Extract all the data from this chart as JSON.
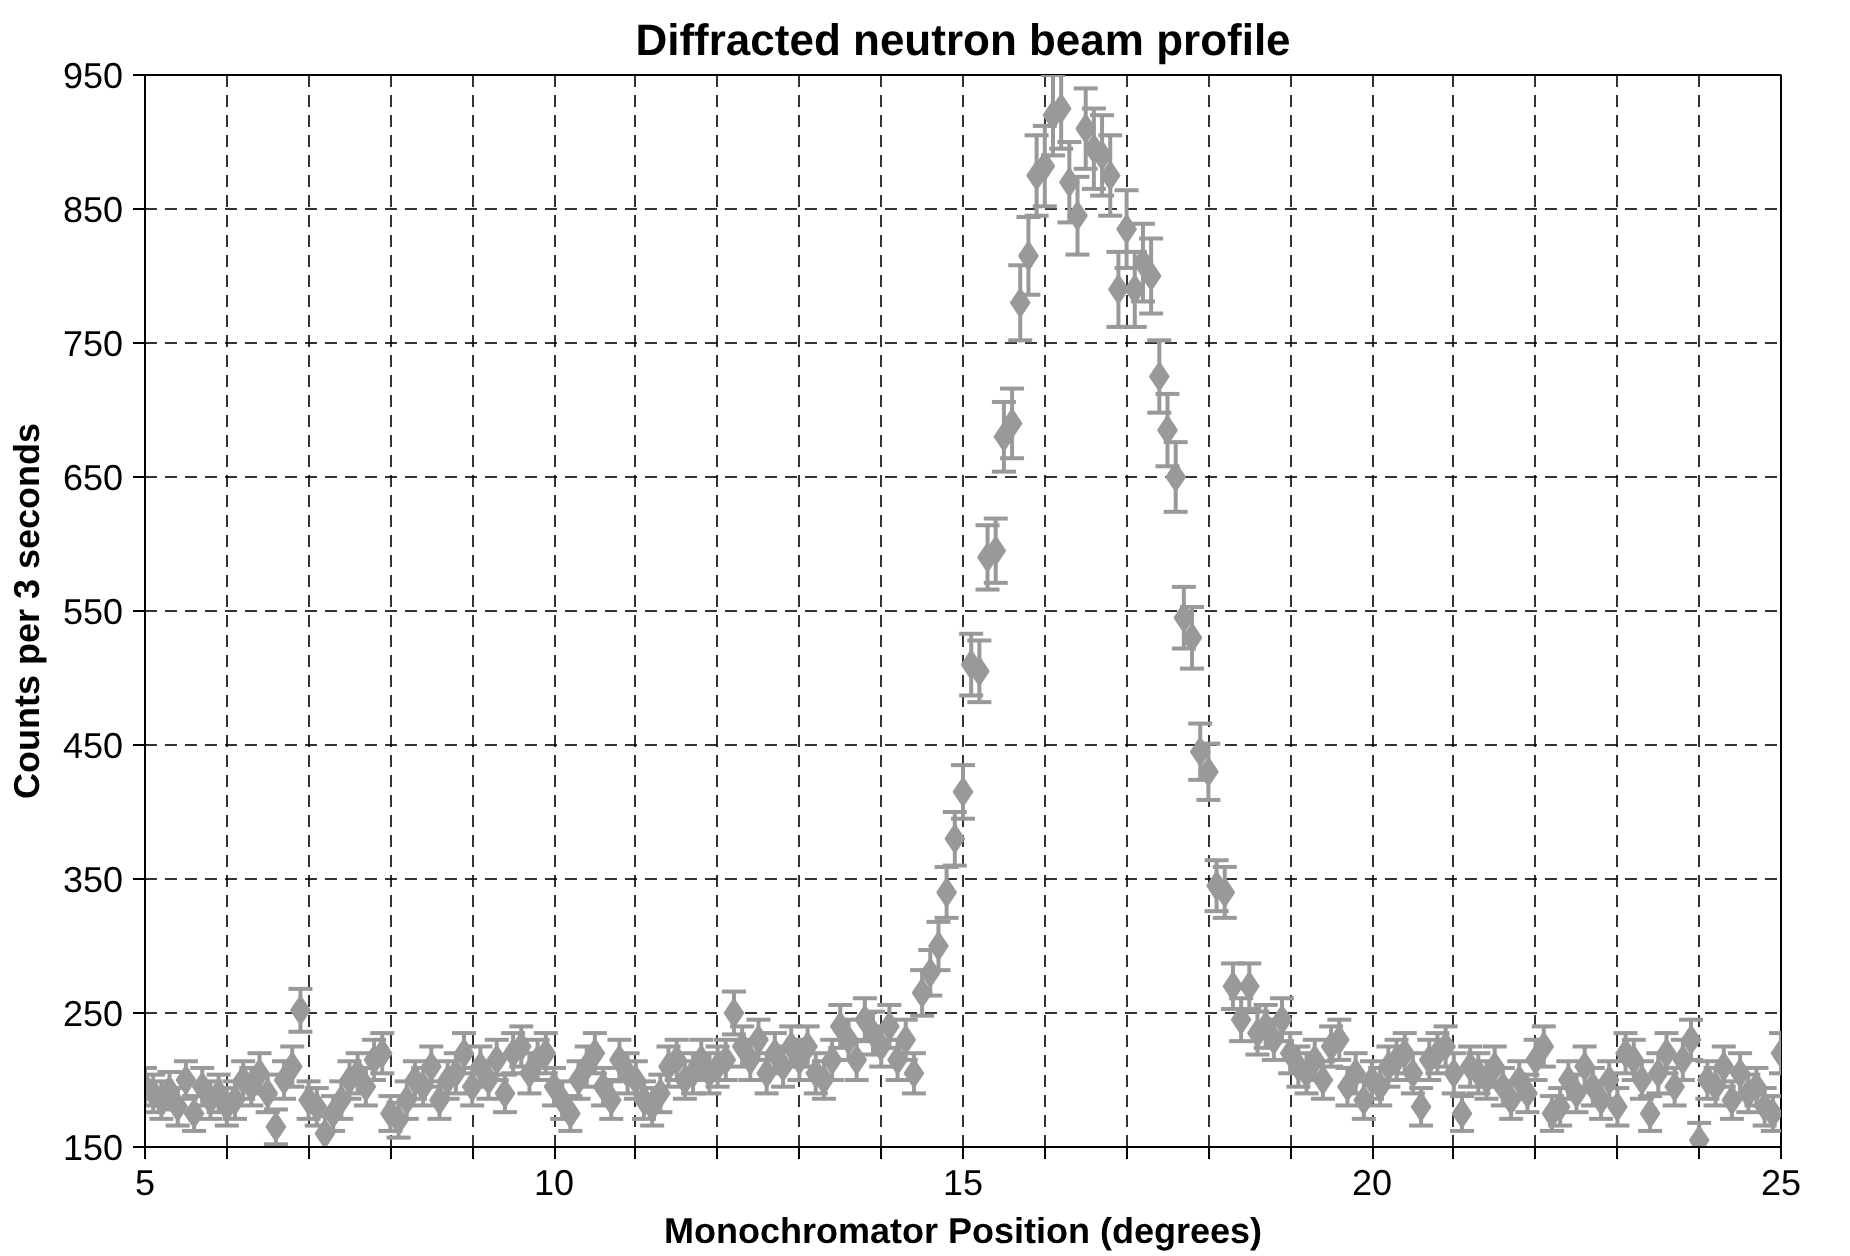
{
  "chart_data": {
    "type": "scatter",
    "title": "Diffracted neutron beam profile",
    "xlabel": "Monochromator Position (degrees)",
    "ylabel": "Counts per 3 seconds",
    "x": [
      5.0,
      5.1,
      5.2,
      5.3,
      5.4,
      5.5,
      5.6,
      5.7,
      5.8,
      5.9,
      6.0,
      6.1,
      6.2,
      6.3,
      6.4,
      6.5,
      6.6,
      6.7,
      6.8,
      6.9,
      7.0,
      7.1,
      7.2,
      7.3,
      7.4,
      7.5,
      7.6,
      7.7,
      7.8,
      7.9,
      8.0,
      8.1,
      8.2,
      8.3,
      8.4,
      8.5,
      8.6,
      8.7,
      8.8,
      8.9,
      9.0,
      9.1,
      9.2,
      9.3,
      9.4,
      9.5,
      9.6,
      9.7,
      9.8,
      9.9,
      10.0,
      10.1,
      10.2,
      10.3,
      10.4,
      10.5,
      10.6,
      10.7,
      10.8,
      10.9,
      11.0,
      11.1,
      11.2,
      11.3,
      11.4,
      11.5,
      11.6,
      11.7,
      11.8,
      11.9,
      12.0,
      12.1,
      12.2,
      12.3,
      12.4,
      12.5,
      12.6,
      12.7,
      12.8,
      12.9,
      13.0,
      13.1,
      13.2,
      13.3,
      13.4,
      13.5,
      13.6,
      13.7,
      13.8,
      13.9,
      14.0,
      14.1,
      14.2,
      14.3,
      14.4,
      14.5,
      14.6,
      14.7,
      14.8,
      14.9,
      15.0,
      15.1,
      15.2,
      15.3,
      15.4,
      15.5,
      15.6,
      15.7,
      15.8,
      15.9,
      16.0,
      16.1,
      16.2,
      16.3,
      16.4,
      16.5,
      16.6,
      16.7,
      16.8,
      16.9,
      17.0,
      17.1,
      17.2,
      17.3,
      17.4,
      17.5,
      17.6,
      17.7,
      17.8,
      17.9,
      18.0,
      18.1,
      18.2,
      18.3,
      18.4,
      18.5,
      18.6,
      18.7,
      18.8,
      18.9,
      19.0,
      19.1,
      19.2,
      19.3,
      19.4,
      19.5,
      19.6,
      19.7,
      19.8,
      19.9,
      20.0,
      20.1,
      20.2,
      20.3,
      20.4,
      20.5,
      20.6,
      20.7,
      20.8,
      20.9,
      21.0,
      21.1,
      21.2,
      21.3,
      21.4,
      21.5,
      21.6,
      21.7,
      21.8,
      21.9,
      22.0,
      22.1,
      22.2,
      22.3,
      22.4,
      22.5,
      22.6,
      22.7,
      22.8,
      22.9,
      23.0,
      23.1,
      23.2,
      23.3,
      23.4,
      23.5,
      23.6,
      23.7,
      23.8,
      23.9,
      24.0,
      24.1,
      24.2,
      24.3,
      24.4,
      24.5,
      24.6,
      24.7,
      24.8,
      24.9,
      25.0
    ],
    "series": [
      {
        "color": "#999999",
        "values": [
          195,
          190,
          185,
          192,
          180,
          200,
          175,
          195,
          185,
          190,
          180,
          185,
          200,
          195,
          205,
          190,
          165,
          200,
          210,
          252,
          185,
          180,
          160,
          175,
          185,
          200,
          205,
          195,
          215,
          220,
          175,
          170,
          185,
          200,
          195,
          210,
          185,
          200,
          205,
          220,
          195,
          210,
          200,
          215,
          190,
          220,
          225,
          205,
          215,
          220,
          195,
          185,
          175,
          200,
          210,
          220,
          195,
          185,
          215,
          205,
          200,
          185,
          180,
          190,
          210,
          215,
          200,
          205,
          215,
          205,
          210,
          215,
          250,
          225,
          215,
          230,
          205,
          220,
          210,
          225,
          215,
          225,
          205,
          200,
          215,
          240,
          230,
          215,
          245,
          235,
          225,
          240,
          215,
          230,
          205,
          265,
          280,
          300,
          340,
          380,
          415,
          510,
          505,
          590,
          595,
          680,
          690,
          780,
          815,
          875,
          882,
          920,
          925,
          870,
          845,
          910,
          895,
          890,
          875,
          790,
          835,
          790,
          810,
          800,
          725,
          685,
          650,
          545,
          530,
          445,
          430,
          345,
          340,
          270,
          245,
          270,
          235,
          240,
          230,
          245,
          220,
          210,
          205,
          215,
          200,
          225,
          230,
          195,
          205,
          185,
          200,
          195,
          210,
          215,
          220,
          205,
          180,
          215,
          220,
          225,
          205,
          175,
          210,
          205,
          200,
          210,
          195,
          185,
          200,
          190,
          215,
          225,
          175,
          180,
          200,
          190,
          210,
          195,
          185,
          200,
          180,
          220,
          215,
          200,
          175,
          205,
          220,
          195,
          215,
          230,
          155,
          200,
          195,
          210,
          185,
          205,
          190,
          195,
          180,
          175,
          220
        ],
        "errors": [
          14,
          14,
          14,
          14,
          14,
          14,
          13,
          14,
          14,
          14,
          14,
          14,
          14,
          14,
          15,
          14,
          13,
          14,
          15,
          16,
          14,
          14,
          13,
          13,
          14,
          14,
          15,
          14,
          15,
          15,
          13,
          13,
          14,
          14,
          14,
          15,
          14,
          14,
          15,
          15,
          14,
          15,
          14,
          15,
          14,
          15,
          15,
          15,
          15,
          15,
          14,
          14,
          13,
          14,
          15,
          15,
          14,
          14,
          15,
          15,
          14,
          14,
          14,
          14,
          15,
          15,
          14,
          15,
          15,
          15,
          15,
          15,
          16,
          15,
          15,
          15,
          15,
          15,
          15,
          15,
          15,
          15,
          15,
          14,
          15,
          16,
          15,
          15,
          16,
          16,
          15,
          16,
          15,
          15,
          15,
          17,
          17,
          18,
          19,
          20,
          20,
          23,
          23,
          24,
          24,
          26,
          26,
          28,
          29,
          30,
          30,
          30,
          30,
          30,
          29,
          30,
          30,
          30,
          30,
          28,
          29,
          28,
          29,
          28,
          27,
          27,
          26,
          23,
          23,
          21,
          21,
          19,
          19,
          17,
          16,
          17,
          16,
          16,
          15,
          16,
          15,
          15,
          15,
          15,
          14,
          15,
          15,
          14,
          15,
          14,
          14,
          14,
          15,
          15,
          15,
          15,
          14,
          15,
          15,
          15,
          15,
          13,
          15,
          15,
          14,
          15,
          14,
          14,
          14,
          14,
          15,
          15,
          13,
          14,
          14,
          14,
          15,
          14,
          14,
          14,
          14,
          15,
          15,
          14,
          13,
          15,
          15,
          14,
          15,
          15,
          13,
          14,
          14,
          15,
          14,
          15,
          14,
          14,
          14,
          13,
          15
        ]
      }
    ],
    "marker": "diamond",
    "xlim": [
      5,
      25
    ],
    "xticks": [
      5,
      {
        "value": 6,
        "label": null
      },
      {
        "value": 7,
        "label": null
      },
      {
        "value": 8,
        "label": null
      },
      {
        "value": 9,
        "label": null
      },
      10,
      {
        "value": 11,
        "label": null
      },
      {
        "value": 12,
        "label": null
      },
      {
        "value": 13,
        "label": null
      },
      {
        "value": 14,
        "label": null
      },
      15,
      {
        "value": 16,
        "label": null
      },
      {
        "value": 17,
        "label": null
      },
      {
        "value": 18,
        "label": null
      },
      {
        "value": 19,
        "label": null
      },
      20,
      {
        "value": 21,
        "label": null
      },
      {
        "value": 22,
        "label": null
      },
      {
        "value": 23,
        "label": null
      },
      {
        "value": 24,
        "label": null
      },
      25
    ],
    "ylim": [
      150,
      950
    ],
    "yticks": [
      150,
      250,
      350,
      450,
      550,
      650,
      750,
      850,
      950
    ],
    "grid": true
  }
}
